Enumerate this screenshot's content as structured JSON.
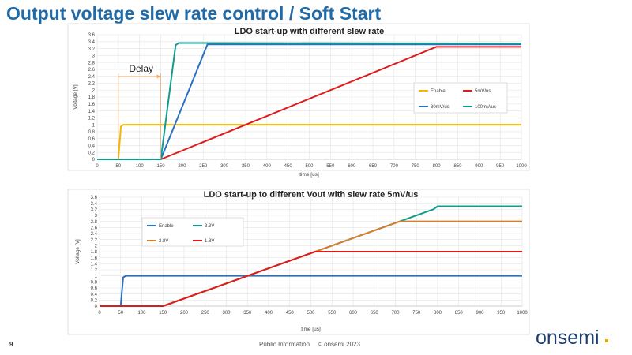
{
  "slide": {
    "title": "Output voltage slew rate control / Soft Start",
    "page_number": "9",
    "public_info": "Public Information",
    "copyright": "© onsemi 2023",
    "logo": "onsemi"
  },
  "chart_data": [
    {
      "type": "line",
      "title": "LDO start-up with different slew rate",
      "xlabel": "time [us]",
      "ylabel": "Voltage [V]",
      "xlim": [
        0,
        1000
      ],
      "ylim": [
        0,
        3.6
      ],
      "xticks": [
        "0",
        "50",
        "100",
        "150",
        "200",
        "250",
        "300",
        "350",
        "400",
        "450",
        "500",
        "550",
        "600",
        "650",
        "700",
        "750",
        "800",
        "850",
        "900",
        "950",
        "1000"
      ],
      "yticks": [
        "0",
        "0.2",
        "0.4",
        "0.6",
        "0.8",
        "1",
        "1.2",
        "1.4",
        "1.6",
        "1.8",
        "2",
        "2.2",
        "2.4",
        "2.6",
        "2.8",
        "3",
        "3.2",
        "3.4",
        "3.6"
      ],
      "grid": true,
      "legend_position": "right",
      "annotation": {
        "label": "Delay",
        "from": 50,
        "to": 150
      },
      "series": [
        {
          "name": "Enable",
          "color": "#f2b705",
          "x": [
            0,
            50,
            56,
            62,
            1000
          ],
          "y": [
            0,
            0,
            0.95,
            1.0,
            1.0
          ]
        },
        {
          "name": "5mV/us",
          "color": "#e01b1b",
          "x": [
            0,
            150,
            800,
            1000
          ],
          "y": [
            0,
            0,
            3.25,
            3.25
          ]
        },
        {
          "name": "30mV/us",
          "color": "#2a72c0",
          "x": [
            0,
            150,
            260,
            1000
          ],
          "y": [
            0,
            0,
            3.32,
            3.32
          ]
        },
        {
          "name": "100mV/us",
          "color": "#119c8f",
          "x": [
            0,
            150,
            185,
            192,
            1000
          ],
          "y": [
            0,
            0,
            3.3,
            3.36,
            3.35
          ]
        }
      ]
    },
    {
      "type": "line",
      "title": "LDO start-up to different Vout with slew rate 5mV/us",
      "xlabel": "time [us]",
      "ylabel": "Voltage [V]",
      "xlim": [
        0,
        1000
      ],
      "ylim": [
        0,
        3.6
      ],
      "xticks": [
        "0",
        "50",
        "100",
        "150",
        "200",
        "250",
        "300",
        "350",
        "400",
        "450",
        "500",
        "550",
        "600",
        "650",
        "700",
        "750",
        "800",
        "850",
        "900",
        "950",
        "1000"
      ],
      "yticks": [
        "0",
        "0.2",
        "0.4",
        "0.6",
        "0.8",
        "1",
        "1.2",
        "1.4",
        "1.6",
        "1.8",
        "2",
        "2.2",
        "2.4",
        "2.6",
        "2.8",
        "3",
        "3.2",
        "3.4",
        "3.6"
      ],
      "grid": true,
      "legend_position": "top-left",
      "series": [
        {
          "name": "Enable",
          "color": "#2a72c0",
          "x": [
            0,
            50,
            56,
            62,
            1000
          ],
          "y": [
            0,
            0,
            0.95,
            1.0,
            1.0
          ]
        },
        {
          "name": "3.3V",
          "color": "#119c8f",
          "x": [
            0,
            150,
            790,
            800,
            1000
          ],
          "y": [
            0,
            0,
            3.2,
            3.3,
            3.3
          ]
        },
        {
          "name": "2.8V",
          "color": "#d97d2c",
          "x": [
            0,
            150,
            710,
            1000
          ],
          "y": [
            0,
            0,
            2.8,
            2.8
          ]
        },
        {
          "name": "1.8V",
          "color": "#e01b1b",
          "x": [
            0,
            150,
            510,
            1000
          ],
          "y": [
            0,
            0,
            1.8,
            1.8
          ]
        }
      ]
    }
  ]
}
